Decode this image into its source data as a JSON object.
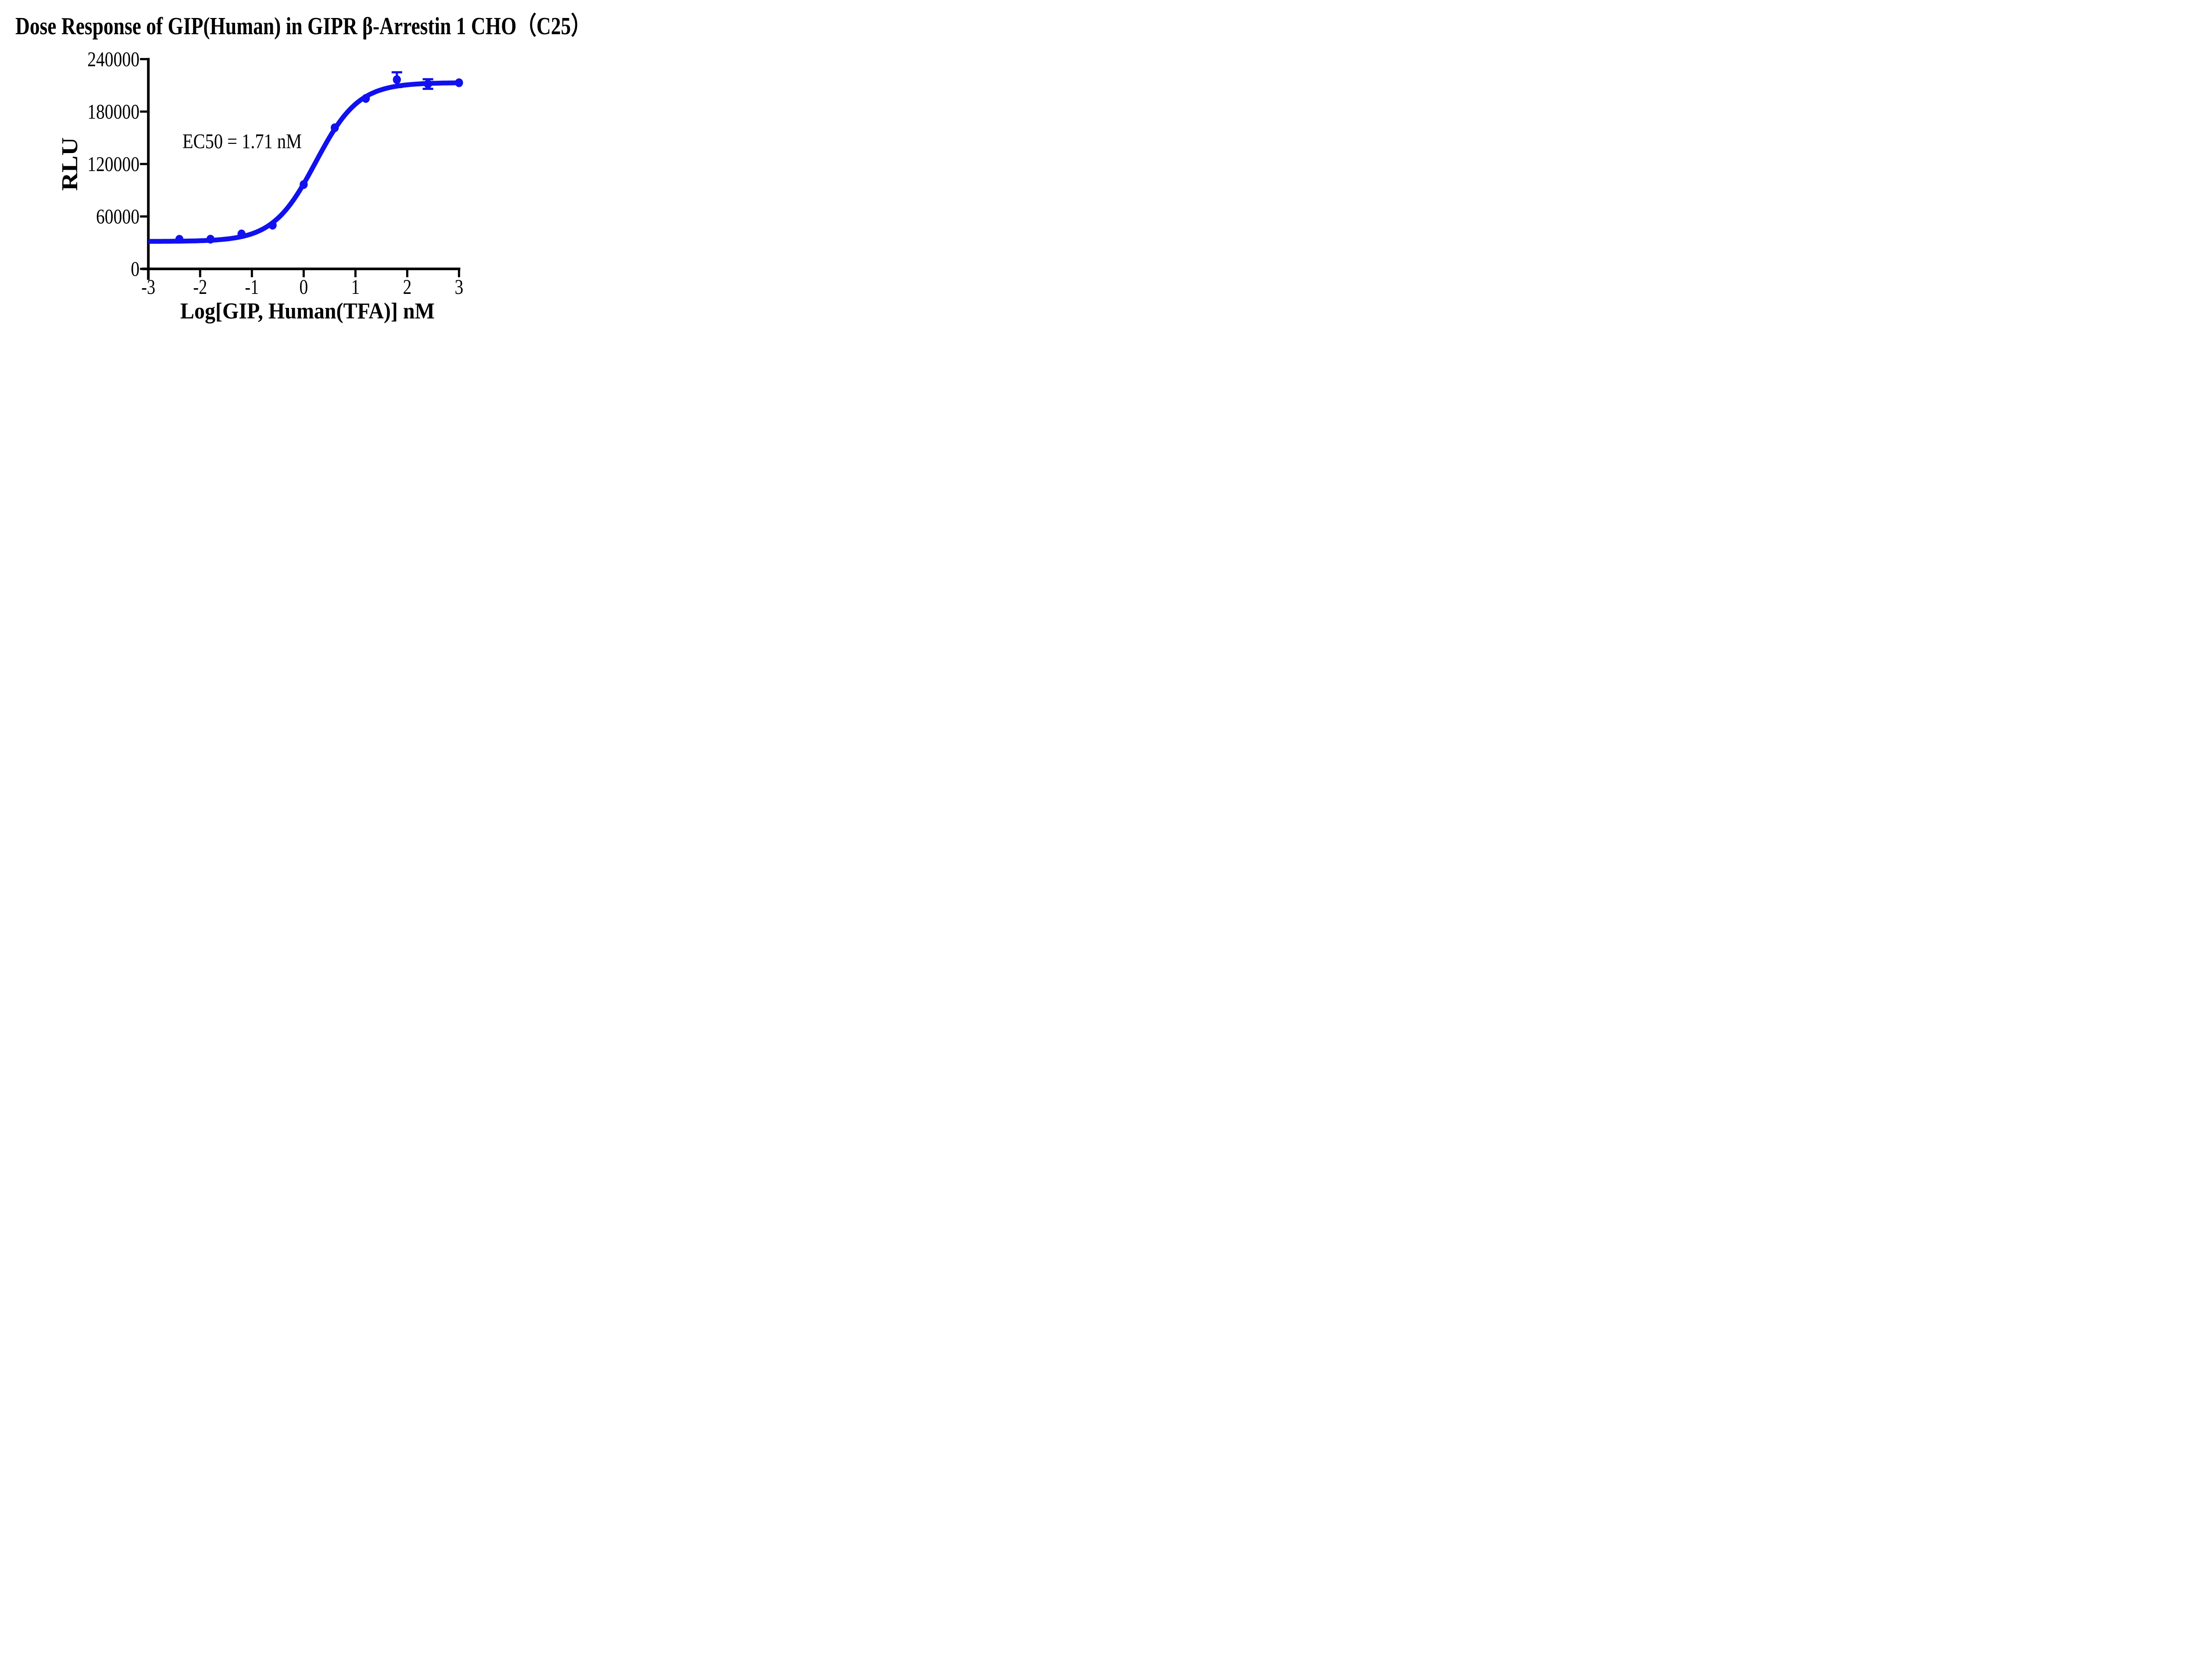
{
  "figure": {
    "title": "Dose Response of GIP(Human) in GIPR β-Arrestin 1 CHO（C25）",
    "annotation_text": "EC50 = 1.71 nM"
  },
  "chart_data": {
    "type": "scatter",
    "subtype": "dose-response-4PL-fit",
    "title": "Dose Response of GIP(Human) in GIPR β-Arrestin 1 CHO（C25）",
    "xlabel": "Log[GIP, Human(TFA)] nM",
    "ylabel": "RLU",
    "xlim": [
      -3,
      3
    ],
    "ylim": [
      0,
      240000
    ],
    "x_ticks": [
      -3,
      -2,
      -1,
      0,
      1,
      2,
      3
    ],
    "y_ticks": [
      0,
      60000,
      120000,
      180000,
      240000
    ],
    "grid": false,
    "legend": "none",
    "series": [
      {
        "name": "GIP, Human(TFA)",
        "x": [
          -2.4,
          -1.8,
          -1.2,
          -0.6,
          0,
          0.6,
          1.2,
          1.8,
          2.4,
          3
        ],
        "y": [
          33900,
          34000,
          40000,
          50000,
          96500,
          161500,
          195000,
          216500,
          211500,
          213000
        ],
        "sd": [
          0,
          0,
          0,
          0,
          0,
          0,
          0,
          8500,
          5500,
          0
        ]
      }
    ],
    "fit": {
      "model": "4PL",
      "bottom": 31400,
      "top": 213100,
      "log_ec50": 0.233,
      "hill": 1.05,
      "ec50_nM": 1.71
    },
    "annotation": {
      "text": "EC50 = 1.71 nM",
      "x": -1.19,
      "y": 145000
    },
    "colors": {
      "curve": "#1010F0",
      "axis": "#000000",
      "text": "#000000",
      "background": "#ffffff"
    }
  }
}
